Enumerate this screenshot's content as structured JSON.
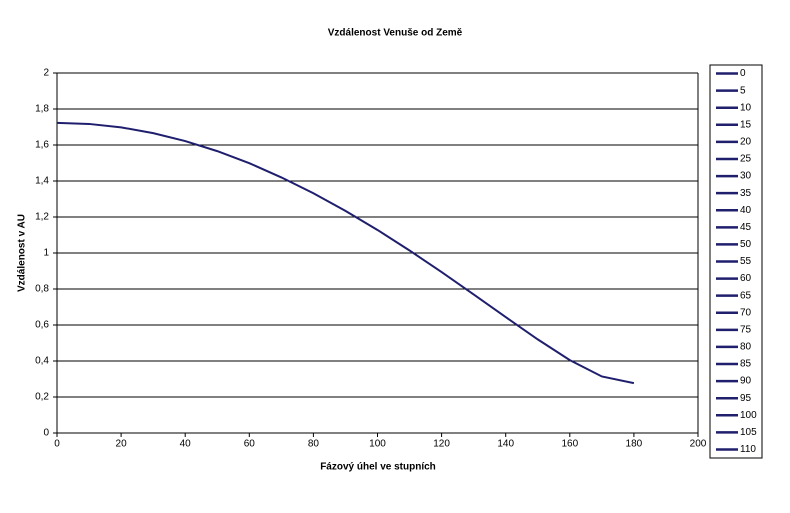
{
  "chart_data": {
    "type": "line",
    "title": "Vzdálenost Venuše od Země",
    "x_label": "Fázový úhel ve stupních",
    "y_label": "Vzdálenost v AU",
    "x": [
      0,
      10,
      20,
      30,
      40,
      50,
      60,
      70,
      80,
      90,
      100,
      110,
      120,
      130,
      140,
      150,
      160,
      170,
      180
    ],
    "series": [
      {
        "color": "#1f1f6e",
        "values": [
          1.723,
          1.717,
          1.698,
          1.666,
          1.622,
          1.566,
          1.499,
          1.42,
          1.332,
          1.234,
          1.128,
          1.014,
          0.894,
          0.77,
          0.644,
          0.52,
          0.405,
          0.314,
          0.277
        ]
      }
    ],
    "xlim": [
      0,
      200
    ],
    "xticks": [
      0,
      20,
      40,
      60,
      80,
      100,
      120,
      140,
      160,
      180,
      200
    ],
    "ylim": [
      0,
      2
    ],
    "yticks": [
      0,
      {
        "value": 0.2,
        "label": "0,2"
      },
      {
        "value": 0.4,
        "label": "0,4"
      },
      {
        "value": 0.6,
        "label": "0,6"
      },
      {
        "value": 0.8,
        "label": "0,8"
      },
      1,
      {
        "value": 1.2,
        "label": "1,2"
      },
      {
        "value": 1.4,
        "label": "1,4"
      },
      {
        "value": 1.6,
        "label": "1,6"
      },
      {
        "value": 1.8,
        "label": "1,8"
      },
      2
    ],
    "grid": true,
    "legend_entries": [
      "0",
      "5",
      "10",
      "15",
      "20",
      "25",
      "30",
      "35",
      "40",
      "45",
      "50",
      "55",
      "60",
      "65",
      "70",
      "75",
      "80",
      "85",
      "90",
      "95",
      "100",
      "105",
      "110"
    ],
    "legend_color": "#1f1f6e"
  }
}
